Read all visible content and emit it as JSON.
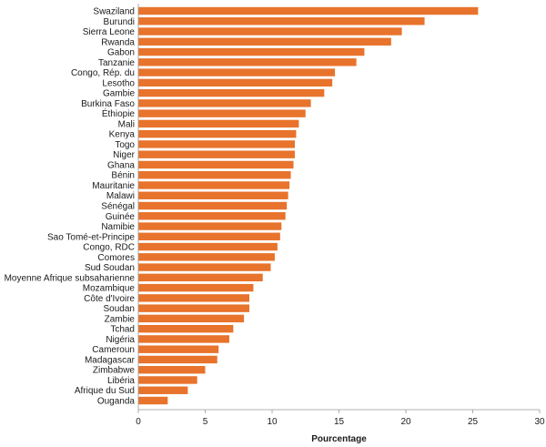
{
  "chart_data": {
    "type": "bar",
    "orientation": "horizontal",
    "categories": [
      "Swaziland",
      "Burundi",
      "Sierra Leone",
      "Rwanda",
      "Gabon",
      "Tanzanie",
      "Congo, Rép. du",
      "Lesotho",
      "Gambie",
      "Burkina Faso",
      "Éthiopie",
      "Mali",
      "Kenya",
      "Togo",
      "Niger",
      "Ghana",
      "Bénin",
      "Mauritanie",
      "Malawi",
      "Sénégal",
      "Guinée",
      "Namibie",
      "Sao Tomé-et-Principe",
      "Congo, RDC",
      "Comores",
      "Sud Soudan",
      "Moyenne Afrique subsaharienne",
      "Mozambique",
      "Côte d'Ivoire",
      "Soudan",
      "Zambie",
      "Tchad",
      "Nigéria",
      "Cameroun",
      "Madagascar",
      "Zimbabwe",
      "Libéria",
      "Afrique du Sud",
      "Ouganda"
    ],
    "values": [
      25.4,
      21.4,
      19.7,
      18.9,
      16.9,
      16.3,
      14.7,
      14.5,
      13.9,
      12.9,
      12.5,
      12.0,
      11.8,
      11.7,
      11.7,
      11.6,
      11.4,
      11.3,
      11.2,
      11.1,
      11.0,
      10.7,
      10.6,
      10.4,
      10.2,
      9.9,
      9.3,
      8.6,
      8.3,
      8.3,
      7.9,
      7.1,
      6.8,
      6.0,
      5.9,
      5.0,
      4.4,
      3.7,
      2.2
    ],
    "xlabel": "Pourcentage",
    "ylabel": "",
    "xlim": [
      0,
      30
    ],
    "xticks": [
      0,
      5,
      10,
      15,
      20,
      25,
      30
    ],
    "grid": false,
    "bar_color": "#e8732c",
    "axis_color": "#999999"
  }
}
